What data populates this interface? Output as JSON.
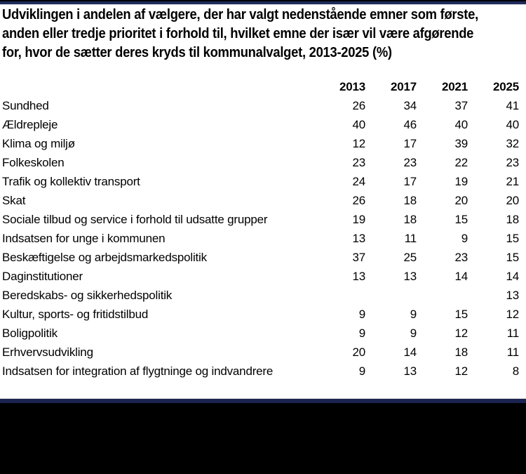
{
  "title": {
    "full": "Udviklingen i andelen af vælgere, der har valgt nedenstående emner som første, anden eller tredje prioritet i forhold til, hvilket emne der især vil være afgørende for, hvor de sætter deres kryds til kommunalvalget, 2013-2025 (%)",
    "lines": [
      "Udviklingen i andelen af vælgere, der har valgt nedenstående emner som første,",
      "anden eller tredje prioritet i forhold til, hvilket emne der især vil være afgørende",
      "for, hvor de sætter deres kryds til kommunalvalget, 2013-2025 (%)"
    ]
  },
  "chart_data": {
    "type": "table",
    "title": "Udviklingen i andelen af vælgere, der har valgt nedenstående emner som første, anden eller tredje prioritet i forhold til, hvilket emne der især vil være afgørende for, hvor de sætter deres kryds til kommunalvalget, 2013-2025 (%)",
    "unit": "%",
    "columns": [
      "2013",
      "2017",
      "2021",
      "2025"
    ],
    "rows": [
      {
        "label": "Sundhed",
        "values": [
          26,
          34,
          37,
          41
        ]
      },
      {
        "label": "Ældrepleje",
        "values": [
          40,
          46,
          40,
          40
        ]
      },
      {
        "label": "Klima og miljø",
        "values": [
          12,
          17,
          39,
          32
        ]
      },
      {
        "label": "Folkeskolen",
        "values": [
          23,
          23,
          22,
          23
        ]
      },
      {
        "label": "Trafik og kollektiv transport",
        "values": [
          24,
          17,
          19,
          21
        ]
      },
      {
        "label": "Skat",
        "values": [
          26,
          18,
          20,
          20
        ]
      },
      {
        "label": "Sociale tilbud og service i forhold til udsatte grupper",
        "values": [
          19,
          18,
          15,
          18
        ]
      },
      {
        "label": "Indsatsen for unge i kommunen",
        "values": [
          13,
          11,
          9,
          15
        ]
      },
      {
        "label": "Beskæftigelse og arbejdsmarkedspolitik",
        "values": [
          37,
          25,
          23,
          15
        ]
      },
      {
        "label": "Daginstitutioner",
        "values": [
          13,
          13,
          14,
          14
        ]
      },
      {
        "label": "Beredskabs- og sikkerhedspolitik",
        "values": [
          "",
          "",
          "",
          13
        ]
      },
      {
        "label": "Kultur, sports- og fritidstilbud",
        "values": [
          9,
          9,
          15,
          12
        ]
      },
      {
        "label": "Boligpolitik",
        "values": [
          9,
          9,
          12,
          11
        ]
      },
      {
        "label": "Erhvervsudvikling",
        "values": [
          20,
          14,
          18,
          11
        ]
      },
      {
        "label": "Indsatsen for integration af flygtninge og indvandrere",
        "values": [
          9,
          13,
          12,
          8
        ]
      }
    ]
  },
  "colors": {
    "accent_navy_top": "#1e2a5c",
    "accent_navy_bottom": "#1b2350",
    "divider_gray": "#d8d8d8",
    "footer_black": "#000000",
    "text": "#000000",
    "background": "#ffffff"
  }
}
